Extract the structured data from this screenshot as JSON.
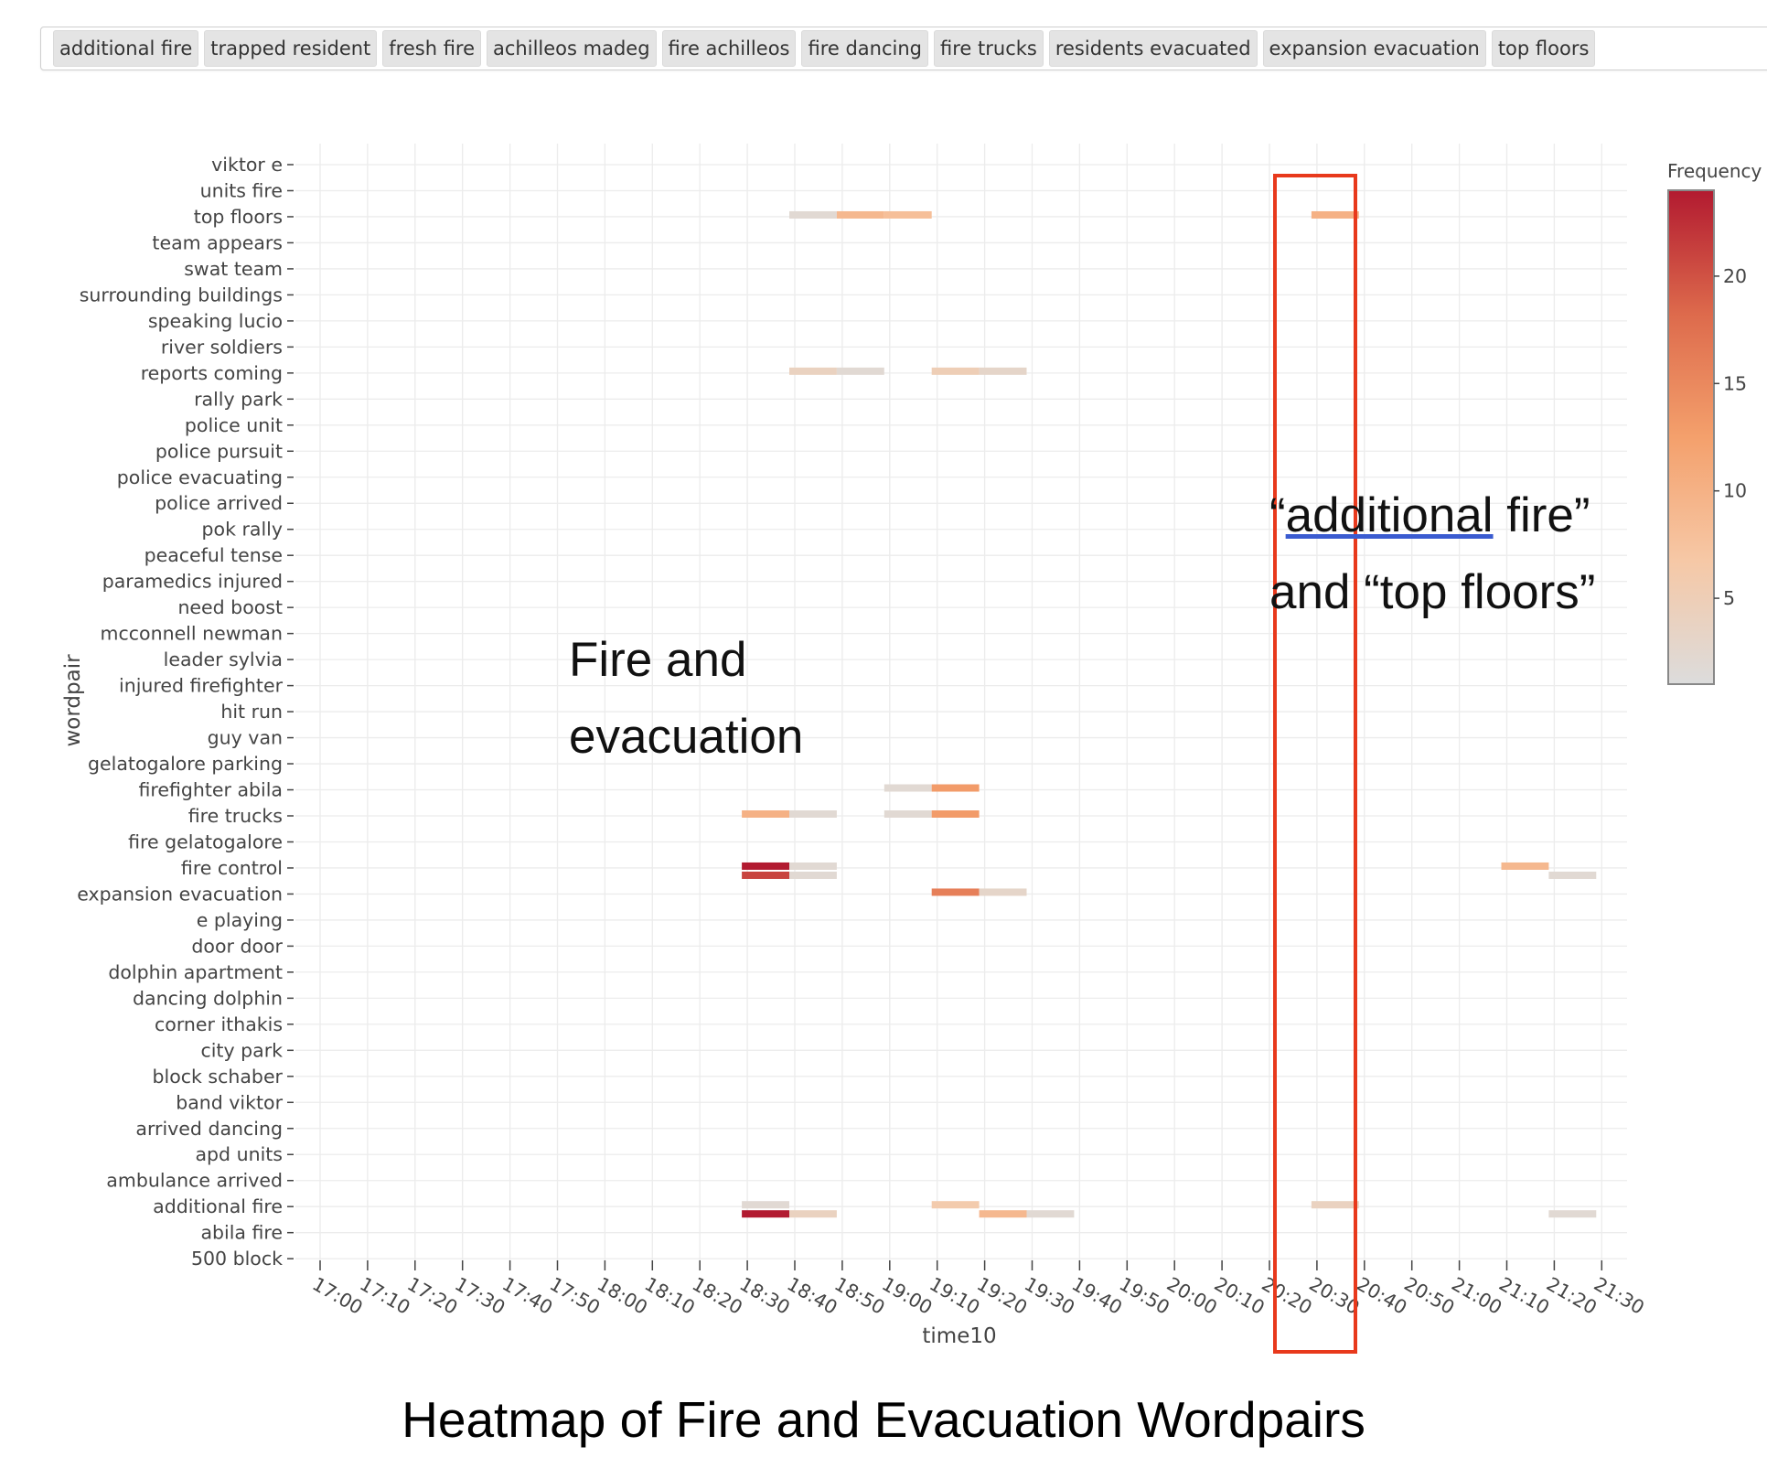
{
  "filter_tags": [
    "additional fire",
    "trapped resident",
    "fresh fire",
    "achilleos madeg",
    "fire achilleos",
    "fire dancing",
    "fire trucks",
    "residents evacuated",
    "expansion evacuation",
    "top floors"
  ],
  "chart_data": {
    "type": "heatmap",
    "title": "",
    "xlabel": "time10",
    "ylabel": "wordpair",
    "x_categories": [
      "17:00",
      "17:10",
      "17:20",
      "17:30",
      "17:40",
      "17:50",
      "18:00",
      "18:10",
      "18:20",
      "18:30",
      "18:40",
      "18:50",
      "19:00",
      "19:10",
      "19:20",
      "19:30",
      "19:40",
      "19:50",
      "20:00",
      "20:10",
      "20:20",
      "20:30",
      "20:40",
      "20:50",
      "21:00",
      "21:10",
      "21:20",
      "21:30"
    ],
    "y_categories": [
      "viktor e",
      "units fire",
      "top floors",
      "team appears",
      "swat team",
      "surrounding buildings",
      "speaking lucio",
      "river soldiers",
      "reports coming",
      "rally park",
      "police unit",
      "police pursuit",
      "police evacuating",
      "police arrived",
      "pok rally",
      "peaceful tense",
      "paramedics injured",
      "need boost",
      "mcconnell newman",
      "leader sylvia",
      "injured firefighter",
      "hit run",
      "guy van",
      "gelatogalore parking",
      "firefighter abila",
      "fire trucks",
      "fire gelatogalore",
      "fire control",
      "expansion evacuation",
      "e playing",
      "door door",
      "dolphin apartment",
      "dancing dolphin",
      "corner ithakis",
      "city park",
      "block schaber",
      "band viktor",
      "arrived dancing",
      "apd units",
      "ambulance arrived",
      "additional fire",
      "abila fire",
      "500 block"
    ],
    "colorbar": {
      "title": "Frequency",
      "min": 1,
      "max": 24,
      "ticks": [
        5,
        10,
        15,
        20
      ],
      "colors": [
        "#dcdcdc",
        "#f6c8a6",
        "#f4a06c",
        "#dd6a4c",
        "#b21a30"
      ]
    },
    "cells": [
      {
        "y": "top floors",
        "x": "18:40",
        "v": 2
      },
      {
        "y": "top floors",
        "x": "18:50",
        "v": 9
      },
      {
        "y": "top floors",
        "x": "19:00",
        "v": 8
      },
      {
        "y": "top floors",
        "x": "20:30",
        "v": 10
      },
      {
        "y": "reports coming",
        "x": "18:40",
        "v": 4
      },
      {
        "y": "reports coming",
        "x": "18:50",
        "v": 2
      },
      {
        "y": "reports coming",
        "x": "19:10",
        "v": 5
      },
      {
        "y": "reports coming",
        "x": "19:20",
        "v": 3
      },
      {
        "y": "firefighter abila",
        "x": "19:00",
        "v": 2
      },
      {
        "y": "firefighter abila",
        "x": "19:10",
        "v": 13
      },
      {
        "y": "fire trucks",
        "x": "18:30",
        "v": 10
      },
      {
        "y": "fire trucks",
        "x": "18:40",
        "v": 2
      },
      {
        "y": "fire trucks",
        "x": "19:00",
        "v": 2
      },
      {
        "y": "fire trucks",
        "x": "19:10",
        "v": 13
      },
      {
        "y": "fire control",
        "x": "18:30",
        "v": 24
      },
      {
        "y": "fire control",
        "x": "18:40",
        "v": 2
      },
      {
        "y": "fire control",
        "x": "21:10",
        "v": 9
      },
      {
        "y": "fire control",
        "x": "18:30",
        "v": 21,
        "sub": 1
      },
      {
        "y": "fire control",
        "x": "18:40",
        "v": 2,
        "sub": 1
      },
      {
        "y": "fire control",
        "x": "21:20",
        "v": 2,
        "sub": 1
      },
      {
        "y": "expansion evacuation",
        "x": "19:10",
        "v": 16
      },
      {
        "y": "expansion evacuation",
        "x": "19:20",
        "v": 3
      },
      {
        "y": "additional fire",
        "x": "18:30",
        "v": 2
      },
      {
        "y": "additional fire",
        "x": "19:10",
        "v": 6
      },
      {
        "y": "additional fire",
        "x": "20:30",
        "v": 4
      },
      {
        "y": "additional fire",
        "x": "18:30",
        "v": 24,
        "sub": 1
      },
      {
        "y": "additional fire",
        "x": "18:40",
        "v": 4,
        "sub": 1
      },
      {
        "y": "additional fire",
        "x": "19:20",
        "v": 9,
        "sub": 1
      },
      {
        "y": "additional fire",
        "x": "19:30",
        "v": 2,
        "sub": 1
      },
      {
        "y": "additional fire",
        "x": "21:20",
        "v": 2,
        "sub": 1
      }
    ]
  },
  "annotations": {
    "fire_evac_line1": "Fire and",
    "fire_evac_line2": "evacuation",
    "top_line1_pre": "“",
    "top_line1_u": "additional",
    "top_line1_post": " fire”",
    "top_line2": "and “top floors”"
  },
  "caption": "Heatmap of Fire and Evacuation Wordpairs"
}
